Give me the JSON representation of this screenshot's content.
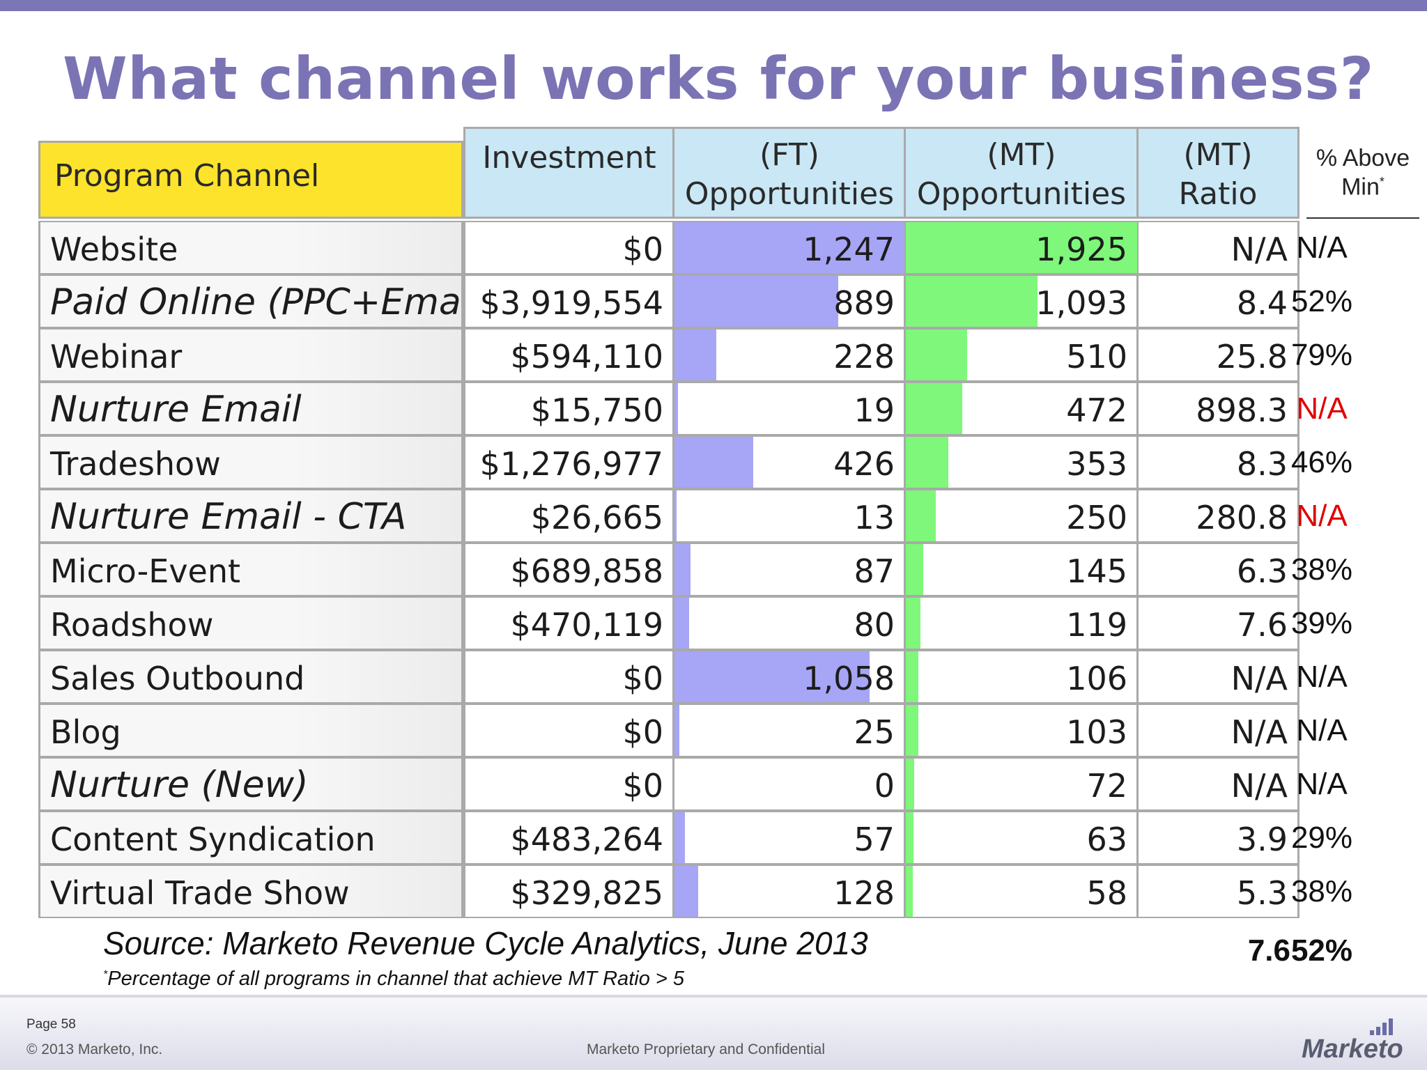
{
  "slide": {
    "title": "What channel works for your business?",
    "source": "Source: Marketo Revenue Cycle Analytics, June 2013",
    "footnote_mark": "*",
    "footnote": "Percentage of all programs in channel that achieve MT Ratio > 5",
    "colors": {
      "title": "#7a74b5",
      "header_channel": "#fde32c",
      "header_blue": "#c9e7f5",
      "ft_bar": "#a7a5f5",
      "mt_bar": "#7ef77a",
      "na_red": "#e00000"
    }
  },
  "table": {
    "headers": {
      "channel": "Program Channel",
      "investment": "Investment",
      "ft_line1": "(FT)",
      "ft_line2": "Opportunities",
      "mt_line1": "(MT)",
      "mt_line2": "Opportunities",
      "ratio_line1": "(MT)",
      "ratio_line2": "Ratio",
      "pct_line1": "% Above",
      "pct_line2": "Min",
      "pct_mark": "*"
    },
    "rows": [
      {
        "channel": "Website",
        "italic": false,
        "investment": "$0",
        "ft": "1,247",
        "ft_value": 1247,
        "mt": "1,925",
        "mt_value": 1925,
        "ratio": "N/A",
        "pct": "N/A",
        "pct_red": false
      },
      {
        "channel": "Paid Online (PPC+Email)",
        "italic": true,
        "investment": "$3,919,554",
        "ft": "889",
        "ft_value": 889,
        "mt": "1,093",
        "mt_value": 1093,
        "ratio": "8.4",
        "pct": "52%",
        "pct_red": false
      },
      {
        "channel": "Webinar",
        "italic": false,
        "investment": "$594,110",
        "ft": "228",
        "ft_value": 228,
        "mt": "510",
        "mt_value": 510,
        "ratio": "25.8",
        "pct": "79%",
        "pct_red": false
      },
      {
        "channel": "Nurture Email",
        "italic": true,
        "investment": "$15,750",
        "ft": "19",
        "ft_value": 19,
        "mt": "472",
        "mt_value": 472,
        "ratio": "898.3",
        "pct": "N/A",
        "pct_red": true
      },
      {
        "channel": "Tradeshow",
        "italic": false,
        "investment": "$1,276,977",
        "ft": "426",
        "ft_value": 426,
        "mt": "353",
        "mt_value": 353,
        "ratio": "8.3",
        "pct": "46%",
        "pct_red": false
      },
      {
        "channel": "Nurture Email - CTA",
        "italic": true,
        "investment": "$26,665",
        "ft": "13",
        "ft_value": 13,
        "mt": "250",
        "mt_value": 250,
        "ratio": "280.8",
        "pct": "N/A",
        "pct_red": true
      },
      {
        "channel": "Micro-Event",
        "italic": false,
        "investment": "$689,858",
        "ft": "87",
        "ft_value": 87,
        "mt": "145",
        "mt_value": 145,
        "ratio": "6.3",
        "pct": "38%",
        "pct_red": false
      },
      {
        "channel": "Roadshow",
        "italic": false,
        "investment": "$470,119",
        "ft": "80",
        "ft_value": 80,
        "mt": "119",
        "mt_value": 119,
        "ratio": "7.6",
        "pct": "39%",
        "pct_red": false
      },
      {
        "channel": "Sales Outbound",
        "italic": false,
        "investment": "$0",
        "ft": "1,058",
        "ft_value": 1058,
        "mt": "106",
        "mt_value": 106,
        "ratio": "N/A",
        "pct": "N/A",
        "pct_red": false
      },
      {
        "channel": "Blog",
        "italic": false,
        "investment": "$0",
        "ft": "25",
        "ft_value": 25,
        "mt": "103",
        "mt_value": 103,
        "ratio": "N/A",
        "pct": "N/A",
        "pct_red": false
      },
      {
        "channel": "Nurture (New)",
        "italic": true,
        "investment": "$0",
        "ft": "0",
        "ft_value": 0,
        "mt": "72",
        "mt_value": 72,
        "ratio": "N/A",
        "pct": "N/A",
        "pct_red": false
      },
      {
        "channel": "Content Syndication",
        "italic": false,
        "investment": "$483,264",
        "ft": "57",
        "ft_value": 57,
        "mt": "63",
        "mt_value": 63,
        "ratio": "3.9",
        "pct": "29%",
        "pct_red": false
      },
      {
        "channel": "Virtual Trade Show",
        "italic": false,
        "investment": "$329,825",
        "ft": "128",
        "ft_value": 128,
        "mt": "58",
        "mt_value": 58,
        "ratio": "5.3",
        "pct": "38%",
        "pct_red": false
      }
    ],
    "totals": {
      "ratio": "7.6",
      "pct": "52%"
    }
  },
  "footer": {
    "page": "Page 58",
    "copyright": "© 2013 Marketo, Inc.",
    "confidential": "Marketo Proprietary and Confidential",
    "logo": "Marketo"
  }
}
